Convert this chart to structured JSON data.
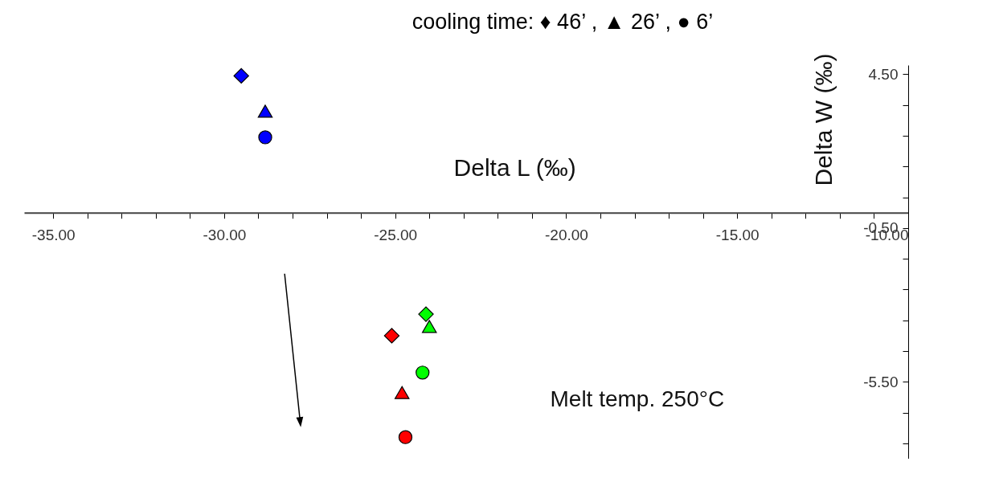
{
  "chart_data": {
    "type": "scatter",
    "title": "cooling time: ♦ 46’ , ▲ 26’ , ● 6’",
    "xlabel": "Delta L (‰)",
    "ylabel": "Delta W (‰)",
    "annotations": [
      "Melt temp. 250°C"
    ],
    "series": [
      {
        "marker": "diamond",
        "x": [
          -29.5,
          -24.1,
          -25.1
        ],
        "values": [
          4.45,
          -3.3,
          -4.0
        ],
        "colors": [
          "#0000ff",
          "#00ff00",
          "#ff0000"
        ]
      },
      {
        "marker": "triangle",
        "x": [
          -28.8,
          -24.0,
          -24.8
        ],
        "values": [
          3.3,
          -3.7,
          -5.85
        ],
        "colors": [
          "#0000ff",
          "#00ff00",
          "#ff0000"
        ]
      },
      {
        "marker": "circle",
        "x": [
          -28.8,
          -24.2,
          -24.7
        ],
        "values": [
          2.45,
          -5.2,
          -7.3
        ],
        "colors": [
          "#0000ff",
          "#00ff00",
          "#ff0000"
        ]
      }
    ],
    "xlim": [
      -35.85,
      -10
    ],
    "xticks": [
      {
        "value": -35,
        "label": "-35.00"
      },
      {
        "value": -34,
        "label": null
      },
      {
        "value": -33,
        "label": null
      },
      {
        "value": -32,
        "label": null
      },
      {
        "value": -31,
        "label": null
      },
      {
        "value": -30,
        "label": "-30.00"
      },
      {
        "value": -29,
        "label": null
      },
      {
        "value": -28,
        "label": null
      },
      {
        "value": -27,
        "label": null
      },
      {
        "value": -26,
        "label": null
      },
      {
        "value": -25,
        "label": "-25.00"
      },
      {
        "value": -24,
        "label": null
      },
      {
        "value": -23,
        "label": null
      },
      {
        "value": -22,
        "label": null
      },
      {
        "value": -21,
        "label": null
      },
      {
        "value": -20,
        "label": "-20.00"
      },
      {
        "value": -19,
        "label": null
      },
      {
        "value": -18,
        "label": null
      },
      {
        "value": -17,
        "label": null
      },
      {
        "value": -16,
        "label": null
      },
      {
        "value": -15,
        "label": "-15.00"
      },
      {
        "value": -14,
        "label": null
      },
      {
        "value": -13,
        "label": null
      },
      {
        "value": -12,
        "label": null
      },
      {
        "value": -11,
        "label": null
      },
      {
        "value": -10,
        "label": "-10.00"
      }
    ],
    "ylim": [
      -8,
      4.8
    ],
    "yticks": [
      {
        "value": 4.5,
        "label": "4.50"
      },
      {
        "value": 3.5,
        "label": null
      },
      {
        "value": 2.5,
        "label": null
      },
      {
        "value": 1.5,
        "label": null
      },
      {
        "value": 0.5,
        "label": null
      },
      {
        "value": -0.5,
        "label": "-0.50"
      },
      {
        "value": -1.5,
        "label": null
      },
      {
        "value": -2.5,
        "label": null
      },
      {
        "value": -3.5,
        "label": null
      },
      {
        "value": -4.5,
        "label": null
      },
      {
        "value": -5.5,
        "label": "-5.50"
      },
      {
        "value": -6.5,
        "label": null
      },
      {
        "value": -7.5,
        "label": null
      }
    ],
    "grid": false
  }
}
